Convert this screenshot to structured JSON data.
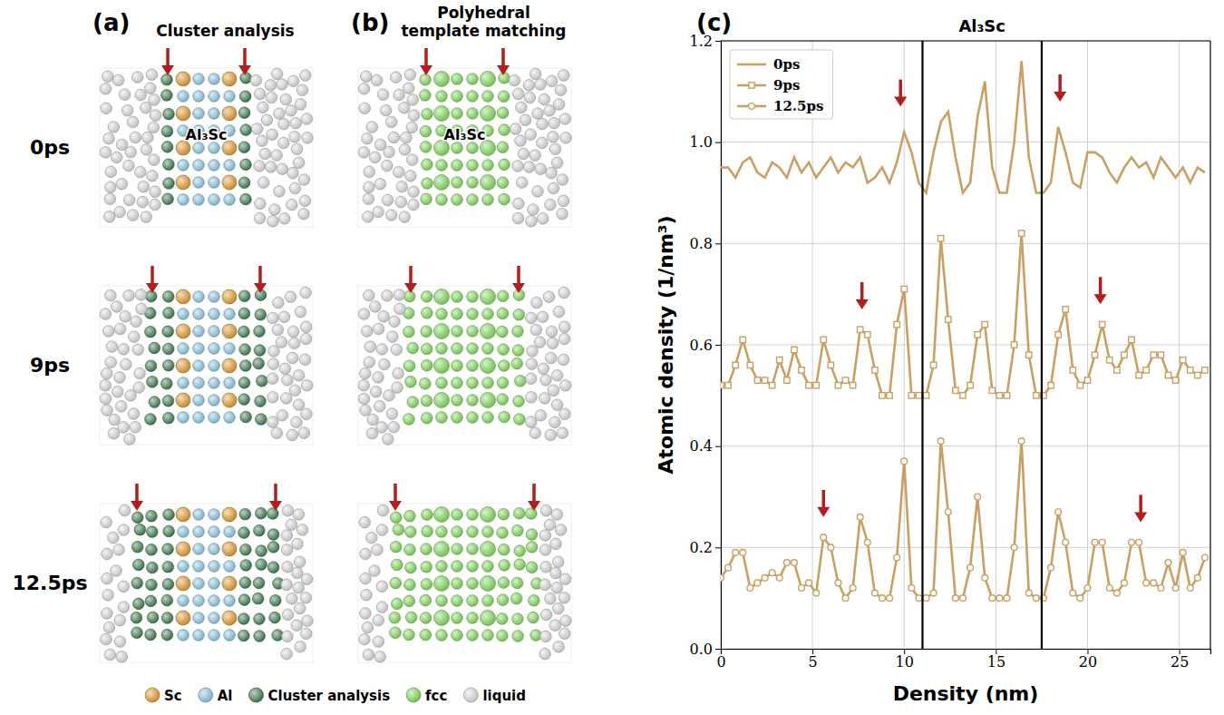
{
  "panels": [
    {
      "label": "(a)",
      "title": "Cluster analysis"
    },
    {
      "label": "(b)",
      "title": "Polyhedral template matching"
    }
  ],
  "snapshot_label": "Al₃Sc",
  "snapshot_times": [
    "0ps",
    "9ps",
    "12.5ps"
  ],
  "atom_legend": [
    {
      "name": "Sc",
      "color": "#e8a030"
    },
    {
      "name": "Al",
      "color": "#8fcfe8"
    },
    {
      "name": "Cluster analysis",
      "color": "#3f7f52"
    },
    {
      "name": "fcc",
      "color": "#86e060"
    },
    {
      "name": "liquid",
      "color": "#e2e2e2"
    }
  ],
  "chart_data": {
    "type": "line",
    "panel_label": "(c)",
    "region_label": "Al₃Sc",
    "x_label": "Density (nm)",
    "y_label": "Atomic density (1/nm³)",
    "xlim": [
      0,
      26.7
    ],
    "ylim": [
      0,
      1.2
    ],
    "xticks": [
      0,
      5,
      10,
      15,
      20,
      25
    ],
    "yticks": [
      {
        "value": 0,
        "label": "0.0"
      },
      {
        "value": 0.2,
        "label": "0.2"
      },
      {
        "value": 0.4,
        "label": "0.4"
      },
      {
        "value": 0.6,
        "label": "0.6"
      },
      {
        "value": 0.8,
        "label": "0.8"
      },
      {
        "value": 1.0,
        "label": "1.0"
      },
      {
        "value": 1.2,
        "label": "1.2"
      }
    ],
    "grid": true,
    "legend": "upper left",
    "vlines": [
      11,
      17.5
    ],
    "annotations": [
      {
        "x": 9.8,
        "y": 1.07
      },
      {
        "x": 18.5,
        "y": 1.08
      },
      {
        "x": 7.7,
        "y": 0.67
      },
      {
        "x": 20.7,
        "y": 0.68
      },
      {
        "x": 5.6,
        "y": 0.26
      },
      {
        "x": 22.9,
        "y": 0.25
      }
    ],
    "x": [
      0,
      0.4,
      0.8,
      1.2,
      1.6,
      2,
      2.4,
      2.8,
      3.2,
      3.6,
      4,
      4.4,
      4.8,
      5.2,
      5.6,
      6,
      6.4,
      6.8,
      7.2,
      7.6,
      8,
      8.4,
      8.8,
      9.2,
      9.6,
      10,
      10.4,
      10.8,
      11.2,
      11.6,
      12,
      12.4,
      12.8,
      13.2,
      13.6,
      14,
      14.4,
      14.8,
      15.2,
      15.6,
      16,
      16.4,
      16.8,
      17.2,
      17.6,
      18,
      18.4,
      18.8,
      19.2,
      19.6,
      20,
      20.4,
      20.8,
      21.2,
      21.6,
      22,
      22.4,
      22.8,
      23.2,
      23.6,
      24,
      24.4,
      24.8,
      25.2,
      25.6,
      26,
      26.4
    ],
    "series": [
      {
        "name": "0ps",
        "color": "#c9a063",
        "marker": "none",
        "values": [
          0.95,
          0.95,
          0.93,
          0.96,
          0.97,
          0.94,
          0.93,
          0.96,
          0.95,
          0.93,
          0.97,
          0.94,
          0.96,
          0.93,
          0.95,
          0.97,
          0.94,
          0.96,
          0.95,
          0.97,
          0.92,
          0.93,
          0.95,
          0.92,
          0.96,
          1.02,
          0.98,
          0.92,
          0.9,
          0.98,
          1.04,
          1.06,
          0.97,
          0.9,
          0.92,
          1.05,
          1.12,
          0.95,
          0.9,
          0.9,
          1.0,
          1.16,
          0.97,
          0.9,
          0.9,
          0.92,
          1.03,
          0.98,
          0.92,
          0.91,
          0.98,
          0.98,
          0.97,
          0.94,
          0.92,
          0.95,
          0.97,
          0.95,
          0.96,
          0.93,
          0.97,
          0.95,
          0.93,
          0.95,
          0.92,
          0.95,
          0.94
        ]
      },
      {
        "name": "9ps",
        "color": "#c9a063",
        "marker": "square",
        "values": [
          0.52,
          0.52,
          0.56,
          0.61,
          0.56,
          0.53,
          0.53,
          0.52,
          0.57,
          0.53,
          0.59,
          0.55,
          0.52,
          0.52,
          0.61,
          0.56,
          0.52,
          0.53,
          0.52,
          0.63,
          0.62,
          0.55,
          0.5,
          0.5,
          0.64,
          0.71,
          0.5,
          0.5,
          0.5,
          0.56,
          0.81,
          0.65,
          0.51,
          0.5,
          0.52,
          0.62,
          0.64,
          0.51,
          0.5,
          0.5,
          0.6,
          0.82,
          0.58,
          0.5,
          0.5,
          0.52,
          0.62,
          0.67,
          0.55,
          0.52,
          0.53,
          0.58,
          0.64,
          0.57,
          0.55,
          0.58,
          0.61,
          0.54,
          0.55,
          0.58,
          0.58,
          0.54,
          0.53,
          0.57,
          0.55,
          0.54,
          0.55
        ]
      },
      {
        "name": "12.5ps",
        "color": "#c9a063",
        "marker": "circle",
        "values": [
          0.14,
          0.16,
          0.19,
          0.19,
          0.12,
          0.13,
          0.14,
          0.15,
          0.14,
          0.17,
          0.17,
          0.12,
          0.13,
          0.11,
          0.22,
          0.2,
          0.13,
          0.1,
          0.12,
          0.26,
          0.21,
          0.11,
          0.1,
          0.1,
          0.18,
          0.37,
          0.12,
          0.1,
          0.1,
          0.11,
          0.41,
          0.27,
          0.1,
          0.1,
          0.16,
          0.3,
          0.14,
          0.1,
          0.1,
          0.1,
          0.2,
          0.41,
          0.11,
          0.1,
          0.1,
          0.16,
          0.27,
          0.21,
          0.11,
          0.1,
          0.12,
          0.21,
          0.21,
          0.12,
          0.11,
          0.13,
          0.21,
          0.21,
          0.13,
          0.13,
          0.12,
          0.17,
          0.12,
          0.19,
          0.12,
          0.14,
          0.18
        ]
      }
    ]
  }
}
